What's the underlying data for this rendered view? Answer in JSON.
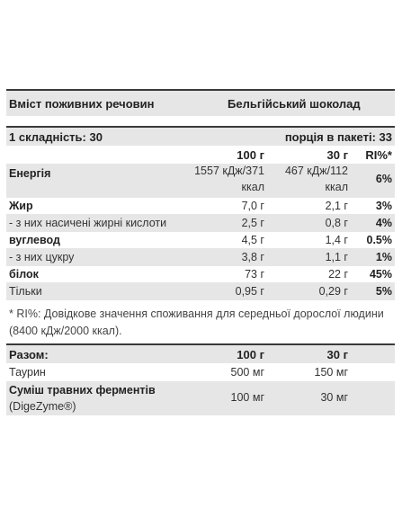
{
  "header": {
    "left": "Вміст поживних речовин",
    "right": "Бельгійський шоколад"
  },
  "serving": {
    "left": "1 складність: 30",
    "right": "порція в пакеті: 33"
  },
  "columns": {
    "col100": "100 г",
    "col30": "30 г",
    "ri": "RI%*"
  },
  "nutrients": [
    {
      "name": "Енергія",
      "v100_line1": "1557 кДж/371",
      "v100_line2": "ккал",
      "v30_line1": "467 кДж/112",
      "v30_line2": "ккал",
      "ri": "6%"
    },
    {
      "name": "Жир",
      "v100": "7,0 г",
      "v30": "2,1 г",
      "ri": "3%"
    },
    {
      "name": "- з них насичені жирні кислоти",
      "v100": "2,5 г",
      "v30": "0,8 г",
      "ri": "4%"
    },
    {
      "name": "вуглевод",
      "v100": "4,5 г",
      "v30": "1,4 г",
      "ri": "0.5%"
    },
    {
      "name": "- з них цукру",
      "v100": "3,8 г",
      "v30": "1,1 г",
      "ri": "1%"
    },
    {
      "name": "білок",
      "v100": "73 г",
      "v30": "22 г",
      "ri": "45%"
    },
    {
      "name": "Тільки",
      "v100": "0,95 г",
      "v30": "0,29 г",
      "ri": "5%"
    }
  ],
  "footnote": "* RI%: Довідкове значення споживання для середньої дорослої людини (8400 кДж/2000 ккал).",
  "extras": {
    "header": {
      "label": "Разом:",
      "col100": "100 г",
      "col30": "30 г"
    },
    "rows": [
      {
        "name": "Таурин",
        "v100": "500 мг",
        "v30": "150 мг"
      },
      {
        "name": "Суміш травних ферментів",
        "sub": "(DigeZyme®)",
        "v100": "100 мг",
        "v30": "30 мг"
      }
    ]
  }
}
